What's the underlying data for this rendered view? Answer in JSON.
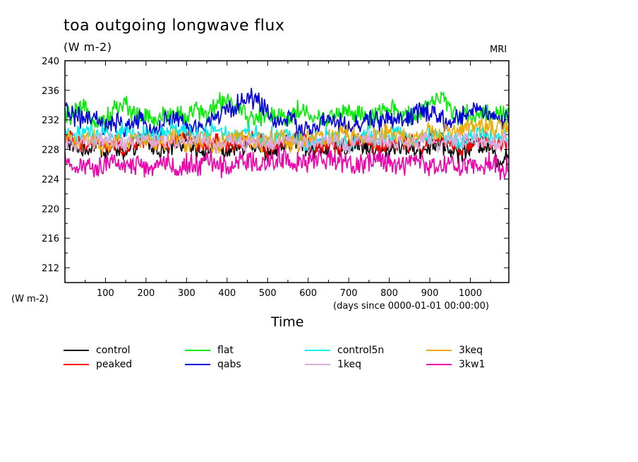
{
  "chart_data": {
    "type": "line",
    "title": "toa outgoing longwave flux",
    "units_label": "(W m-2)",
    "source_label": "MRI",
    "ylabel": "(W m-2)",
    "xlabel": "Time",
    "xlabel_sub": "(days since 0000-01-01 00:00:00)",
    "xlim": [
      0,
      1095
    ],
    "ylim": [
      210,
      240
    ],
    "x_ticks": [
      100,
      200,
      300,
      400,
      500,
      600,
      700,
      800,
      900,
      1000
    ],
    "y_ticks": [
      212,
      216,
      220,
      224,
      228,
      232,
      236,
      240
    ],
    "x_step": 25,
    "series": [
      {
        "name": "control",
        "color": "#000000",
        "values": [
          229.2,
          228.4,
          227.8,
          228.9,
          227.5,
          228.3,
          227.1,
          228.6,
          229.0,
          228.2,
          227.6,
          228.8,
          229.4,
          228.1,
          227.9,
          228.7,
          227.4,
          228.2,
          228.9,
          228.6,
          227.2,
          228.0,
          228.8,
          229.1,
          228.3,
          227.7,
          228.5,
          227.9,
          228.4,
          228.9,
          228.2,
          227.6,
          228.1,
          228.7,
          228.3,
          227.8,
          228.6,
          228.9,
          228.0,
          227.5,
          228.4,
          228.8,
          228.2,
          226.3,
          228.0
        ]
      },
      {
        "name": "peaked",
        "color": "#ff0000",
        "values": [
          229.8,
          229.0,
          228.4,
          229.5,
          228.1,
          228.9,
          227.8,
          229.2,
          229.6,
          228.8,
          228.2,
          229.4,
          230.0,
          228.7,
          228.5,
          229.3,
          228.0,
          228.8,
          229.5,
          229.2,
          227.9,
          228.6,
          229.4,
          229.7,
          228.9,
          228.3,
          229.1,
          228.5,
          229.0,
          229.5,
          228.8,
          228.2,
          228.7,
          229.3,
          228.9,
          228.4,
          229.2,
          229.5,
          228.6,
          228.1,
          229.0,
          229.4,
          228.8,
          228.5,
          228.9
        ]
      },
      {
        "name": "flat",
        "color": "#00ee00",
        "values": [
          232.6,
          232.9,
          233.3,
          232.1,
          231.8,
          233.6,
          234.2,
          232.7,
          232.3,
          231.9,
          232.8,
          233.1,
          232.4,
          233.5,
          232.6,
          234.0,
          235.1,
          233.2,
          232.5,
          232.1,
          233.0,
          232.7,
          232.3,
          233.4,
          232.8,
          231.9,
          232.4,
          232.9,
          233.3,
          232.6,
          232.1,
          232.8,
          233.6,
          232.9,
          232.4,
          233.1,
          234.3,
          235.2,
          233.4,
          232.7,
          232.4,
          233.0,
          232.6,
          232.9,
          232.5
        ]
      },
      {
        "name": "qabs",
        "color": "#0000dd",
        "values": [
          233.4,
          232.6,
          231.9,
          232.2,
          230.8,
          231.5,
          230.9,
          232.0,
          231.2,
          230.6,
          231.8,
          232.4,
          231.0,
          230.7,
          231.4,
          232.6,
          233.2,
          234.1,
          234.8,
          235.0,
          232.9,
          231.7,
          232.3,
          231.1,
          230.6,
          231.2,
          232.0,
          231.5,
          230.8,
          231.4,
          232.1,
          231.7,
          232.5,
          231.6,
          232.2,
          233.4,
          232.8,
          232.0,
          231.5,
          232.3,
          233.2,
          233.8,
          232.6,
          231.8,
          232.3
        ]
      },
      {
        "name": "control5n",
        "color": "#00eeee",
        "values": [
          230.4,
          229.8,
          230.6,
          229.5,
          230.2,
          229.9,
          230.8,
          229.6,
          230.3,
          229.7,
          230.5,
          231.0,
          230.2,
          229.8,
          230.6,
          230.9,
          230.1,
          229.9,
          230.4,
          230.0,
          229.5,
          230.2,
          229.8,
          229.4,
          228.9,
          229.6,
          230.1,
          229.3,
          228.8,
          229.5,
          230.0,
          229.2,
          229.7,
          230.3,
          229.6,
          229.1,
          229.8,
          230.2,
          229.5,
          229.0,
          229.7,
          230.1,
          229.4,
          229.8,
          229.6
        ]
      },
      {
        "name": "3keq",
        "color": "#eeaa00",
        "values": [
          229.6,
          228.9,
          229.8,
          229.2,
          228.4,
          229.5,
          228.8,
          229.9,
          229.1,
          228.5,
          229.3,
          229.8,
          228.7,
          229.4,
          229.0,
          228.6,
          229.5,
          229.9,
          229.3,
          228.8,
          229.4,
          229.9,
          229.2,
          228.7,
          229.6,
          230.1,
          229.4,
          229.8,
          230.3,
          229.6,
          229.1,
          229.9,
          230.4,
          229.7,
          229.2,
          229.9,
          230.4,
          229.8,
          230.3,
          230.8,
          231.2,
          230.6,
          230.9,
          231.0,
          230.5
        ]
      },
      {
        "name": "1keq",
        "color": "#ddaadd",
        "values": [
          229.0,
          228.5,
          229.3,
          228.7,
          229.6,
          228.9,
          228.4,
          229.2,
          229.7,
          228.8,
          229.3,
          228.6,
          229.1,
          229.5,
          228.9,
          228.3,
          229.0,
          229.4,
          228.7,
          229.2,
          228.6,
          229.0,
          229.5,
          228.8,
          228.4,
          229.1,
          229.6,
          228.9,
          228.5,
          229.2,
          229.7,
          229.0,
          228.6,
          229.3,
          228.8,
          229.4,
          229.0,
          228.5,
          229.2,
          229.6,
          228.9,
          229.3,
          228.7,
          229.1,
          229.0
        ]
      },
      {
        "name": "3kw1",
        "color": "#ee00aa",
        "values": [
          226.1,
          225.4,
          226.3,
          225.0,
          225.8,
          226.4,
          225.6,
          226.0,
          225.3,
          225.9,
          226.5,
          225.2,
          226.1,
          225.7,
          226.6,
          226.0,
          225.4,
          226.2,
          226.8,
          225.9,
          226.3,
          226.9,
          226.4,
          226.7,
          226.1,
          226.6,
          227.0,
          226.3,
          226.5,
          225.8,
          226.2,
          226.7,
          226.0,
          225.7,
          226.4,
          226.1,
          225.6,
          226.0,
          226.5,
          225.8,
          226.2,
          225.9,
          226.3,
          225.4,
          225.5
        ]
      }
    ]
  }
}
